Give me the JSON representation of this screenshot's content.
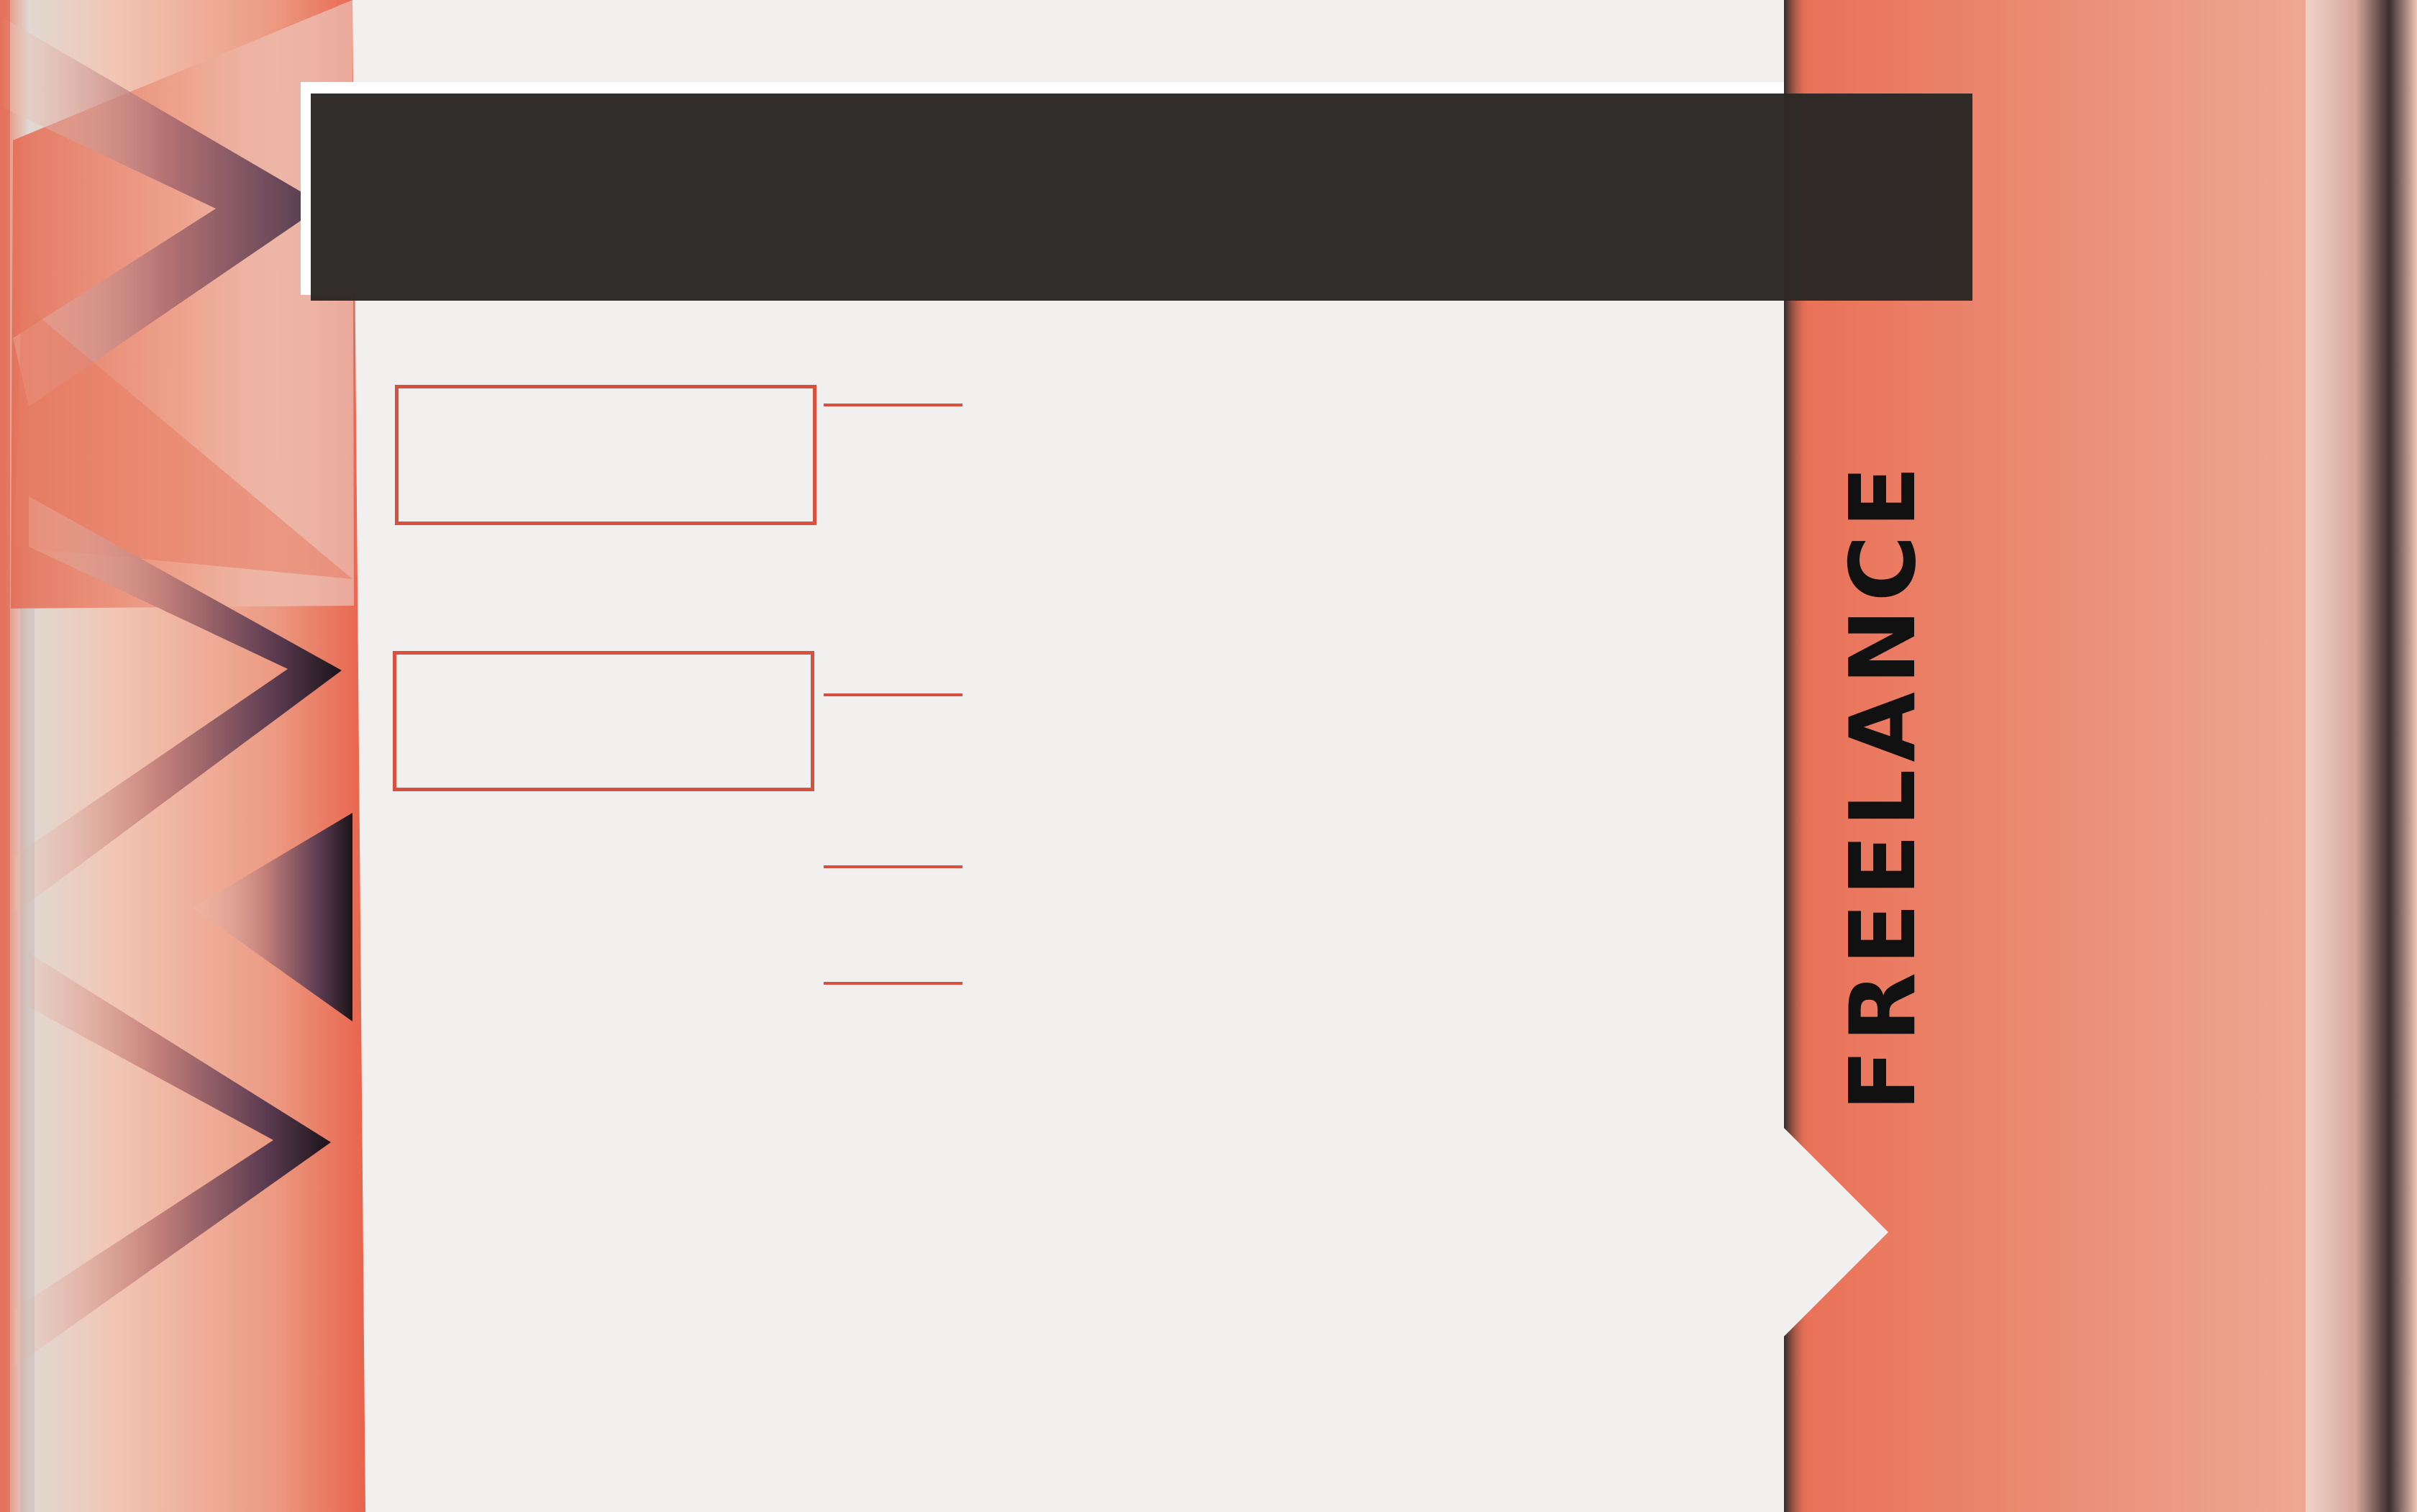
{
  "header": {
    "title": ""
  },
  "side_banner": {
    "label": "FREELANCE"
  },
  "colors": {
    "background": "#f2f0ee",
    "header_bar": "#2d2927",
    "accent": "#d9503f",
    "coral": "#e8735a",
    "coral_light": "#eaa892",
    "shadow_dark": "#2b2024"
  }
}
